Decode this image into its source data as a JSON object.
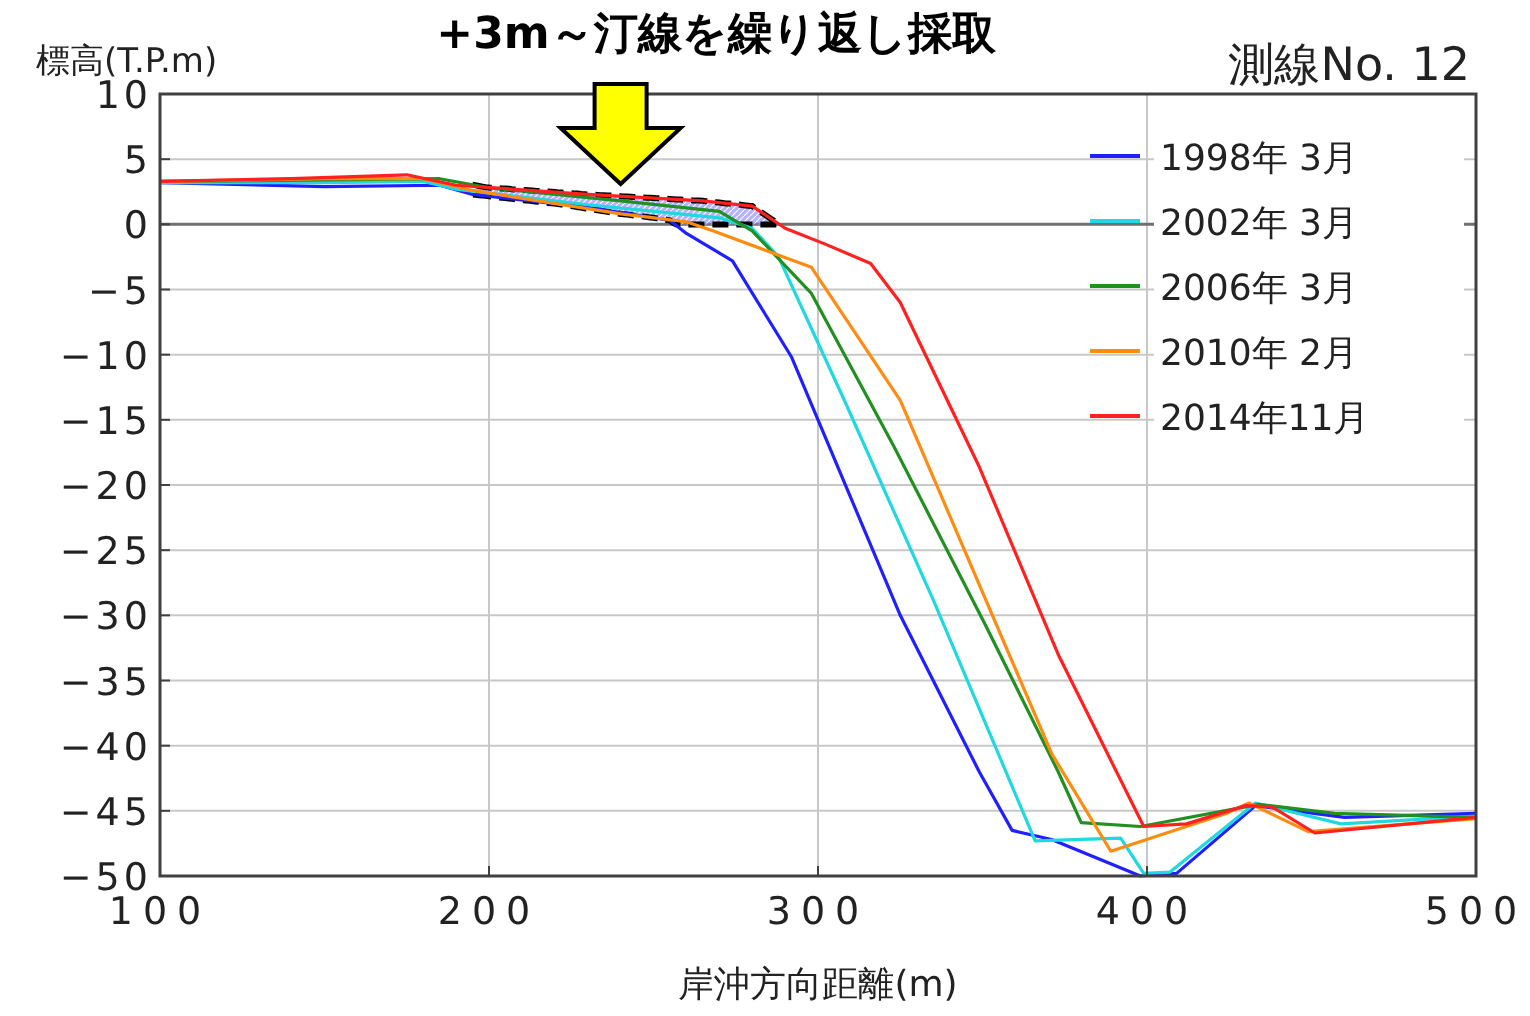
{
  "chart_data": {
    "type": "line",
    "title": "測線No. 12",
    "xlabel": "岸沖方向距離(m)",
    "ylabel": "標高(T.P.m)",
    "xlim": [
      100,
      500
    ],
    "xticks": [
      100,
      200,
      300,
      400,
      500
    ],
    "ylim": [
      -50,
      10
    ],
    "yticks": [
      -50,
      -45,
      -40,
      -35,
      -30,
      -25,
      -20,
      -15,
      -10,
      -5,
      0,
      5,
      10
    ],
    "grid": true,
    "legend": "top right",
    "line_style": "solid",
    "marker": "none",
    "ref_lines": [
      {
        "axis": "y",
        "value": 0,
        "color": "#707070"
      }
    ],
    "annotations": [
      {
        "text": "+3m～汀線を繰り返し採取",
        "x": 240,
        "y": 3
      }
    ],
    "series": [
      {
        "name": "1998年 3月",
        "color": "#2020ff",
        "x": [
          100,
          150,
          185,
          195,
          230,
          255,
          260,
          274,
          292,
          325,
          349,
          359,
          371,
          398,
          409,
          433,
          460,
          500
        ],
        "values": [
          3.2,
          2.9,
          3.0,
          2.3,
          1.3,
          0.3,
          -0.7,
          -2.8,
          -10.2,
          -30,
          -42,
          -46.5,
          -47.2,
          -50,
          -49.8,
          -44.6,
          -45.5,
          -45.2
        ]
      },
      {
        "name": "2002年 3月",
        "color": "#20d8e0",
        "x": [
          100,
          150,
          180,
          190,
          230,
          270,
          280,
          288,
          308,
          335,
          366,
          392,
          399,
          407,
          433,
          459,
          500
        ],
        "values": [
          3.2,
          3.2,
          3.3,
          2.7,
          1.5,
          0.5,
          -0.3,
          -2.5,
          -13.5,
          -28.8,
          -47.3,
          -47.1,
          -49.8,
          -49.7,
          -44.4,
          -46,
          -45.4
        ]
      },
      {
        "name": "2006年 3月",
        "color": "#209020",
        "x": [
          100,
          150,
          185,
          200,
          240,
          270,
          280,
          298,
          323,
          351,
          373,
          380,
          398,
          434,
          457,
          500
        ],
        "values": [
          3.3,
          3.4,
          3.5,
          2.8,
          1.8,
          1.0,
          -0.5,
          -5.3,
          -17,
          -30.8,
          -42,
          -45.9,
          -46.2,
          -44.5,
          -45.2,
          -45.5
        ]
      },
      {
        "name": "2010年 2月",
        "color": "#ff8c10",
        "x": [
          100,
          150,
          180,
          195,
          240,
          260,
          268,
          298,
          325,
          371,
          389,
          424,
          431,
          449,
          500
        ],
        "values": [
          3.3,
          3.5,
          3.5,
          2.6,
          0.8,
          0.2,
          -0.5,
          -3.3,
          -13.5,
          -40.6,
          -48.1,
          -45.2,
          -44.4,
          -46.6,
          -45.6
        ]
      },
      {
        "name": "2014年11月",
        "color": "#ff2020",
        "x": [
          100,
          140,
          175,
          190,
          230,
          265,
          280,
          290,
          302,
          316,
          325,
          349,
          373,
          399,
          412,
          430,
          438,
          451,
          500
        ],
        "values": [
          3.3,
          3.5,
          3.8,
          3.0,
          2.3,
          1.8,
          1.4,
          -0.3,
          -1.5,
          -3,
          -6,
          -18.6,
          -33,
          -46.2,
          -46,
          -44.6,
          -44.7,
          -46.7,
          -45.5
        ]
      }
    ]
  }
}
